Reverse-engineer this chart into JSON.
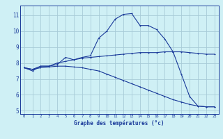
{
  "title": "Graphe des températures (°c)",
  "background_color": "#cff0f5",
  "line_color": "#1a3a9a",
  "grid_color": "#a8ccd8",
  "xlim": [
    -0.5,
    23.5
  ],
  "ylim": [
    4.8,
    11.6
  ],
  "yticks": [
    5,
    6,
    7,
    8,
    9,
    10,
    11
  ],
  "xticks": [
    0,
    1,
    2,
    3,
    4,
    5,
    6,
    7,
    8,
    9,
    10,
    11,
    12,
    13,
    14,
    15,
    16,
    17,
    18,
    19,
    20,
    21,
    22,
    23
  ],
  "series1": {
    "x": [
      0,
      1,
      2,
      3,
      4,
      5,
      6,
      7,
      8,
      9,
      10,
      11,
      12,
      13,
      14,
      15,
      16,
      17,
      18,
      19,
      20,
      21,
      22,
      23
    ],
    "y": [
      7.7,
      7.5,
      7.8,
      7.8,
      7.9,
      8.35,
      8.2,
      8.35,
      8.45,
      9.55,
      10.0,
      10.75,
      11.05,
      11.1,
      10.35,
      10.35,
      10.1,
      9.5,
      8.7,
      7.3,
      5.9,
      5.3,
      5.25,
      5.25
    ]
  },
  "series2": {
    "x": [
      0,
      1,
      2,
      3,
      4,
      5,
      6,
      7,
      8,
      9,
      10,
      11,
      12,
      13,
      14,
      15,
      16,
      17,
      18,
      19,
      20,
      21,
      22,
      23
    ],
    "y": [
      7.7,
      7.6,
      7.8,
      7.8,
      8.0,
      8.1,
      8.2,
      8.3,
      8.35,
      8.4,
      8.45,
      8.5,
      8.55,
      8.6,
      8.65,
      8.65,
      8.65,
      8.7,
      8.7,
      8.7,
      8.65,
      8.6,
      8.55,
      8.55
    ]
  },
  "series3": {
    "x": [
      0,
      1,
      2,
      3,
      4,
      5,
      6,
      7,
      8,
      9,
      10,
      11,
      12,
      13,
      14,
      15,
      16,
      17,
      18,
      19,
      20,
      21,
      22,
      23
    ],
    "y": [
      7.7,
      7.6,
      7.7,
      7.75,
      7.8,
      7.8,
      7.75,
      7.7,
      7.6,
      7.5,
      7.3,
      7.1,
      6.9,
      6.7,
      6.5,
      6.3,
      6.1,
      5.9,
      5.7,
      5.55,
      5.4,
      5.3,
      5.25,
      5.25
    ]
  },
  "figsize": [
    3.2,
    2.0
  ],
  "dpi": 100
}
